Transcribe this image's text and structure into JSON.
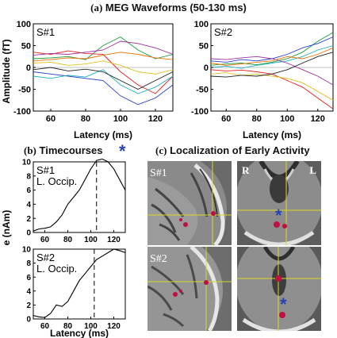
{
  "figure": {
    "panel_a": {
      "label": "(a)",
      "title": "MEG Waveforms (50-130 ms)"
    },
    "panel_b": {
      "label": "(b)",
      "title": "Timecourses",
      "star": "*"
    },
    "panel_c": {
      "label": "(c)",
      "title": "Localization of Early Activity",
      "images": [
        {
          "subject": "S#1",
          "view": "sagittal"
        },
        {
          "subject": "",
          "view": "axial",
          "left_marker": "R",
          "right_marker": "L",
          "star": "*"
        },
        {
          "subject": "S#2",
          "view": "sagittal"
        },
        {
          "subject": "",
          "view": "axial",
          "star": "*"
        }
      ]
    }
  },
  "chart_data": [
    {
      "type": "line",
      "panel": "a",
      "subject": "S#1",
      "ylabel": "Amplitude (fT)",
      "xlabel": "Latency (ms)",
      "xlim": [
        50,
        130
      ],
      "ylim": [
        -100,
        100
      ],
      "xticks": [
        60,
        80,
        100,
        120
      ],
      "yticks": [
        100,
        50,
        0,
        -50,
        -100
      ],
      "series": [
        {
          "x": [
            50,
            60,
            70,
            80,
            90,
            100,
            110,
            120,
            130
          ],
          "values": [
            20,
            22,
            25,
            18,
            50,
            70,
            40,
            20,
            30
          ]
        },
        {
          "x": [
            50,
            60,
            70,
            80,
            90,
            100,
            110,
            120,
            130
          ],
          "values": [
            35,
            30,
            38,
            32,
            30,
            -10,
            -40,
            -60,
            -20
          ]
        },
        {
          "x": [
            50,
            60,
            70,
            80,
            90,
            100,
            110,
            120,
            130
          ],
          "values": [
            -10,
            -15,
            -20,
            -25,
            -30,
            -65,
            -85,
            -70,
            -40
          ]
        },
        {
          "x": [
            50,
            60,
            70,
            80,
            90,
            100,
            110,
            120,
            130
          ],
          "values": [
            10,
            12,
            5,
            8,
            15,
            5,
            -10,
            -15,
            -5
          ]
        },
        {
          "x": [
            50,
            60,
            70,
            80,
            90,
            100,
            110,
            120,
            130
          ],
          "values": [
            -20,
            -25,
            -18,
            -22,
            -5,
            -40,
            -60,
            -45,
            -20
          ]
        },
        {
          "x": [
            50,
            60,
            70,
            80,
            90,
            100,
            110,
            120,
            130
          ],
          "values": [
            28,
            32,
            30,
            35,
            40,
            60,
            55,
            45,
            30
          ]
        },
        {
          "x": [
            50,
            60,
            70,
            80,
            90,
            100,
            110,
            120,
            130
          ],
          "values": [
            -5,
            0,
            -8,
            -4,
            -10,
            -30,
            -50,
            -30,
            -10
          ]
        },
        {
          "x": [
            50,
            60,
            70,
            80,
            90,
            100,
            110,
            120,
            130
          ],
          "values": [
            15,
            18,
            22,
            20,
            28,
            35,
            30,
            22,
            18
          ]
        }
      ]
    },
    {
      "type": "line",
      "panel": "a",
      "subject": "S#2",
      "xlabel": "Latency (ms)",
      "xlim": [
        50,
        130
      ],
      "ylim": [
        -100,
        100
      ],
      "xticks": [
        60,
        80,
        100,
        120
      ],
      "yticks": [
        100,
        50,
        0,
        -50,
        -100
      ],
      "series": [
        {
          "x": [
            50,
            60,
            70,
            80,
            90,
            100,
            110,
            120,
            130
          ],
          "values": [
            5,
            8,
            10,
            6,
            12,
            20,
            35,
            60,
            80
          ]
        },
        {
          "x": [
            50,
            60,
            70,
            80,
            90,
            100,
            110,
            120,
            130
          ],
          "values": [
            -5,
            -8,
            -6,
            -10,
            -15,
            -30,
            -45,
            -70,
            -95
          ]
        },
        {
          "x": [
            50,
            60,
            70,
            80,
            90,
            100,
            110,
            120,
            130
          ],
          "values": [
            15,
            12,
            18,
            15,
            20,
            30,
            45,
            55,
            70
          ]
        },
        {
          "x": [
            50,
            60,
            70,
            80,
            90,
            100,
            110,
            120,
            130
          ],
          "values": [
            -15,
            -12,
            -18,
            -15,
            -20,
            -25,
            -35,
            -55,
            -75
          ]
        },
        {
          "x": [
            50,
            60,
            70,
            80,
            90,
            100,
            110,
            120,
            130
          ],
          "values": [
            0,
            3,
            -2,
            5,
            10,
            15,
            25,
            40,
            50
          ]
        },
        {
          "x": [
            50,
            60,
            70,
            80,
            90,
            100,
            110,
            120,
            130
          ],
          "values": [
            20,
            18,
            22,
            25,
            20,
            10,
            -5,
            -20,
            -40
          ]
        },
        {
          "x": [
            50,
            60,
            70,
            80,
            90,
            100,
            110,
            120,
            130
          ],
          "values": [
            -20,
            -22,
            -18,
            -20,
            -15,
            -5,
            10,
            25,
            35
          ]
        },
        {
          "x": [
            50,
            60,
            70,
            80,
            90,
            100,
            110,
            120,
            130
          ],
          "values": [
            10,
            5,
            8,
            12,
            15,
            25,
            20,
            30,
            45
          ]
        }
      ]
    },
    {
      "type": "line",
      "panel": "b",
      "subject": "S#1",
      "region": "L. Occip.",
      "ylabel": "Amplitude (nAm)",
      "xlim": [
        50,
        130
      ],
      "ylim": [
        0,
        10
      ],
      "xticks": [
        60,
        80,
        100,
        120
      ],
      "yticks": [
        10,
        8,
        6,
        4,
        2,
        0
      ],
      "marker_x": 105,
      "series": [
        {
          "x": [
            50,
            55,
            60,
            65,
            70,
            75,
            80,
            85,
            90,
            95,
            100,
            105,
            110,
            115,
            120,
            125,
            130
          ],
          "values": [
            0.2,
            0.5,
            0.6,
            0.8,
            1.5,
            2.5,
            4.0,
            5.0,
            6.0,
            7.5,
            9.0,
            10.2,
            10.4,
            10.0,
            9.0,
            7.5,
            6.0
          ]
        }
      ]
    },
    {
      "type": "line",
      "panel": "b",
      "subject": "S#2",
      "region": "L. Occip.",
      "xlabel": "Latency (ms)",
      "xlim": [
        50,
        130
      ],
      "ylim": [
        0,
        10
      ],
      "xticks": [
        60,
        80,
        100,
        120
      ],
      "yticks": [
        10,
        8,
        6,
        4,
        2,
        0
      ],
      "marker_x": 103,
      "series": [
        {
          "x": [
            50,
            55,
            60,
            65,
            70,
            75,
            80,
            85,
            90,
            95,
            100,
            105,
            110,
            115,
            120,
            125,
            130
          ],
          "values": [
            0.5,
            0.3,
            0.2,
            0.8,
            2.0,
            1.8,
            2.5,
            4.0,
            5.5,
            6.5,
            7.5,
            8.5,
            9.0,
            9.5,
            10.0,
            9.8,
            9.5
          ]
        }
      ]
    }
  ],
  "colors": {
    "waveforms": [
      "#1a9a3c",
      "#e02020",
      "#2840d0",
      "#e0c020",
      "#20b0c0",
      "#a030a0",
      "#202020",
      "#f07000"
    ],
    "marker_star": "#2a3fb3",
    "mri_crosshair": "#d8d820",
    "mri_activation": "#c01040"
  }
}
